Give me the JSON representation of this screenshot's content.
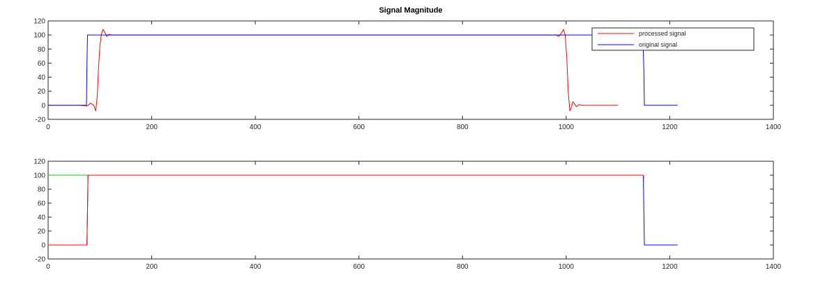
{
  "chart_data": [
    {
      "type": "line",
      "title": "Signal Magnitude",
      "xlabel": "",
      "ylabel": "",
      "xlim": [
        0,
        1400
      ],
      "ylim": [
        -20,
        120
      ],
      "xticks": [
        0,
        200,
        400,
        600,
        800,
        1000,
        1200,
        1400
      ],
      "yticks": [
        -20,
        0,
        20,
        40,
        60,
        80,
        100,
        120
      ],
      "grid": false,
      "legend": "top-right",
      "series": [
        {
          "name": "processed signal",
          "color": "#ff0000",
          "x": [
            0,
            60,
            75,
            82,
            88,
            92,
            95,
            97,
            100,
            103,
            106,
            110,
            113,
            118,
            122,
            130,
            140,
            500,
            980,
            986,
            991,
            995,
            998,
            1001,
            1004,
            1007,
            1010,
            1013,
            1016,
            1020,
            1025,
            1030,
            1040,
            1100
          ],
          "y": [
            0,
            0,
            -1,
            3,
            0,
            -8,
            15,
            50,
            85,
            102,
            108,
            103,
            98,
            101,
            100,
            100,
            100,
            100,
            100,
            98,
            103,
            108,
            100,
            70,
            20,
            -8,
            -3,
            5,
            2,
            -2,
            1,
            0,
            0,
            0
          ]
        },
        {
          "name": "original signal",
          "color": "#0000ff",
          "x": [
            0,
            74,
            75,
            76,
            200,
            600,
            1000,
            1148,
            1150,
            1151,
            1215
          ],
          "y": [
            0,
            0,
            60,
            100,
            100,
            100,
            100,
            100,
            50,
            0,
            0
          ]
        }
      ]
    },
    {
      "type": "line",
      "title": "",
      "xlabel": "",
      "ylabel": "",
      "xlim": [
        0,
        1400
      ],
      "ylim": [
        -20,
        120
      ],
      "xticks": [
        0,
        200,
        400,
        600,
        800,
        1000,
        1200,
        1400
      ],
      "yticks": [
        -20,
        0,
        20,
        40,
        60,
        80,
        100,
        120
      ],
      "grid": false,
      "series": [
        {
          "color": "#00cc00",
          "x": [
            0,
            76
          ],
          "y": [
            100,
            100
          ]
        },
        {
          "color": "#0000ff",
          "x": [
            0,
            75,
            76,
            77,
            600,
            1149,
            1150,
            1151,
            1215
          ],
          "y": [
            0,
            0,
            50,
            100,
            100,
            100,
            50,
            0,
            0
          ]
        },
        {
          "color": "#ff0000",
          "x": [
            0,
            75,
            76,
            77,
            600,
            1149,
            1150
          ],
          "y": [
            0,
            0,
            50,
            100,
            100,
            100,
            96
          ]
        }
      ]
    }
  ]
}
